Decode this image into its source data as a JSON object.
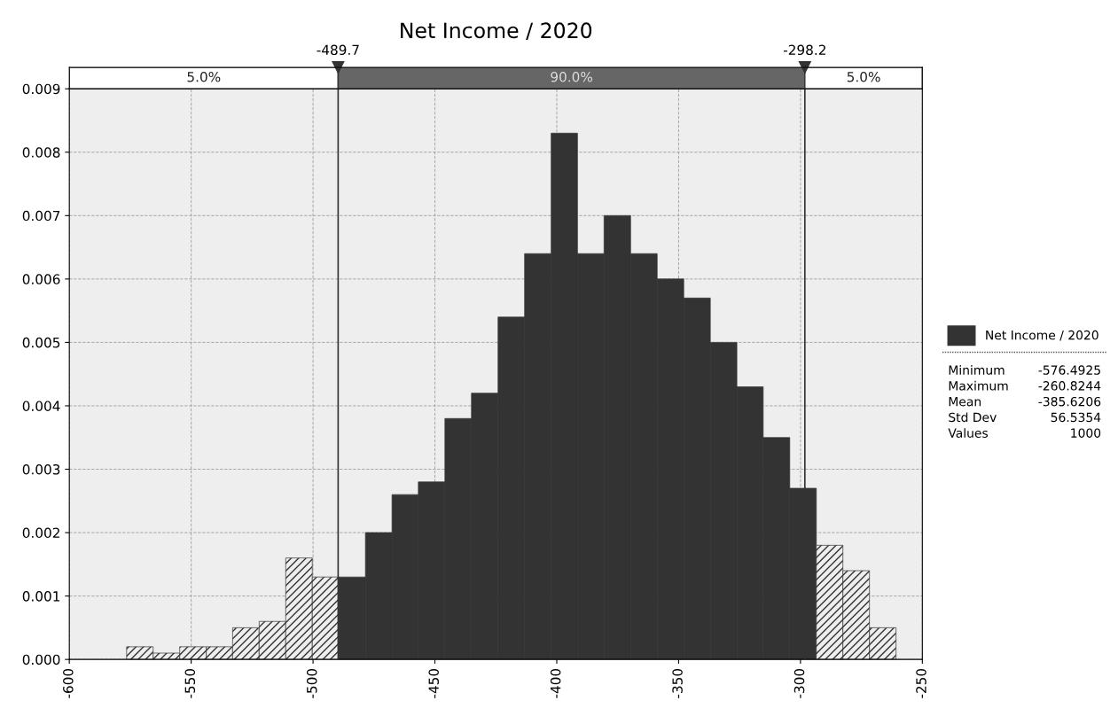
{
  "chart_data": {
    "type": "histogram",
    "title": "Net Income / 2020",
    "bins": [
      -576.5,
      -565.6,
      -554.7,
      -543.8,
      -533.0,
      -522.1,
      -511.2,
      -500.3,
      -489.4,
      -478.5,
      -467.6,
      -456.8,
      -445.9,
      -435.0,
      -424.1,
      -413.2,
      -402.3,
      -391.5,
      -380.6,
      -369.7,
      -358.8,
      -347.9,
      -337.0,
      -326.1,
      -315.3,
      -304.4,
      -293.5,
      -282.6,
      -271.7,
      -260.8
    ],
    "series": [
      {
        "name": "Net Income / 2020",
        "color": "#333333",
        "values": [
          0.0002,
          0.0001,
          0.0002,
          0.0002,
          0.0005,
          0.0006,
          0.0016,
          0.0013,
          0.0013,
          0.002,
          0.0026,
          0.0028,
          0.0038,
          0.0042,
          0.0054,
          0.0064,
          0.0083,
          0.0064,
          0.007,
          0.0064,
          0.006,
          0.0057,
          0.005,
          0.0043,
          0.0035,
          0.0027,
          0.0018,
          0.0014,
          0.0005
        ]
      }
    ],
    "xlim": [
      -600,
      -250
    ],
    "xticks": [
      -600,
      -550,
      -500,
      -450,
      -400,
      -350,
      -300,
      -250
    ],
    "ylim": [
      0,
      0.009
    ],
    "yticks": [
      {
        "value": 0,
        "label": "0.000"
      },
      {
        "value": 0.001,
        "label": "0.001"
      },
      {
        "value": 0.002,
        "label": "0.002"
      },
      {
        "value": 0.003,
        "label": "0.003"
      },
      {
        "value": 0.004,
        "label": "0.004"
      },
      {
        "value": 0.005,
        "label": "0.005"
      },
      {
        "value": 0.006,
        "label": "0.006"
      },
      {
        "value": 0.007,
        "label": "0.007"
      },
      {
        "value": 0.008,
        "label": "0.008"
      },
      {
        "value": 0.009,
        "label": "0.009"
      }
    ],
    "ref_lines": [
      {
        "axis": "x",
        "value": -489.7,
        "label": "-489.7",
        "color": "#333333"
      },
      {
        "axis": "x",
        "value": -298.2,
        "label": "-298.2",
        "color": "#333333"
      }
    ],
    "annotations": [
      "5.0%",
      "90.0%",
      "5.0%",
      "Minimum",
      "-576.4925",
      "Maximum",
      "-260.8244",
      "Mean",
      "-385.6206",
      "Std Dev",
      "56.5354",
      "Values",
      "1000"
    ],
    "grid": true,
    "legend": "right"
  }
}
